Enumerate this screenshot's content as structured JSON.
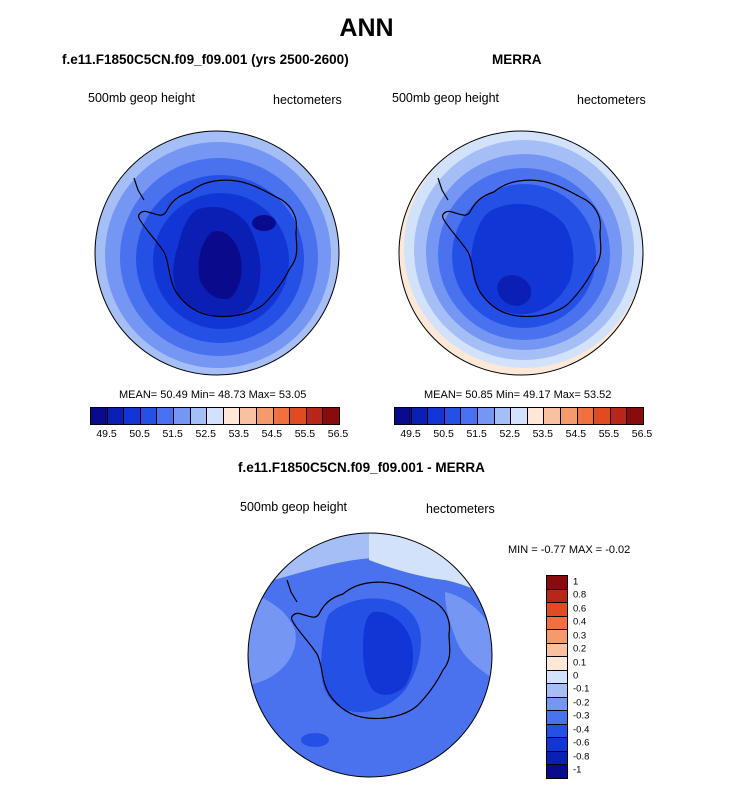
{
  "figure": {
    "title": "ANN",
    "panels": [
      {
        "title": "f.e11.F1850C5CN.f09_f09.001 (yrs 2500-2600)",
        "left_string": "500mb geop height",
        "right_string": "hectometers",
        "stats": "MEAN=  50.49  Min=  48.73  Max=  53.05"
      },
      {
        "title": "MERRA",
        "left_string": "500mb geop height",
        "right_string": "hectometers",
        "stats": "MEAN=  50.85  Min=  49.17  Max=  53.52"
      },
      {
        "title": "f.e11.F1850C5CN.f09_f09.001 - MERRA",
        "left_string": "500mb geop height",
        "right_string": "hectometers",
        "stats": "MIN =  -0.77 MAX =  -0.02"
      }
    ],
    "colorbar_abs": {
      "colors": [
        "#0a0a8c",
        "#0b1fb4",
        "#1236d6",
        "#2550e6",
        "#4a72ef",
        "#7597f3",
        "#a5bff6",
        "#d3e2fb",
        "#fde7d6",
        "#f8c2a0",
        "#f59a6a",
        "#f0703f",
        "#e04b22",
        "#b8261a",
        "#8a0b0b"
      ],
      "labels": [
        "49.5",
        "50.5",
        "51.5",
        "52.5",
        "53.5",
        "54.5",
        "55.5",
        "56.5"
      ]
    },
    "colorbar_diff": {
      "colors": [
        "#8a0b0b",
        "#b8261a",
        "#e04b22",
        "#f0703f",
        "#f59a6a",
        "#f8c2a0",
        "#fde7d6",
        "#d3e2fb",
        "#a5bff6",
        "#7597f3",
        "#4a72ef",
        "#2550e6",
        "#1236d6",
        "#0b1fb4",
        "#0a0a8c"
      ],
      "labels": [
        "1",
        "0.8",
        "0.6",
        "0.4",
        "0.3",
        "0.2",
        "0.1",
        "0",
        "-0.1",
        "-0.2",
        "-0.3",
        "-0.4",
        "-0.6",
        "-0.8",
        "-1"
      ]
    }
  }
}
